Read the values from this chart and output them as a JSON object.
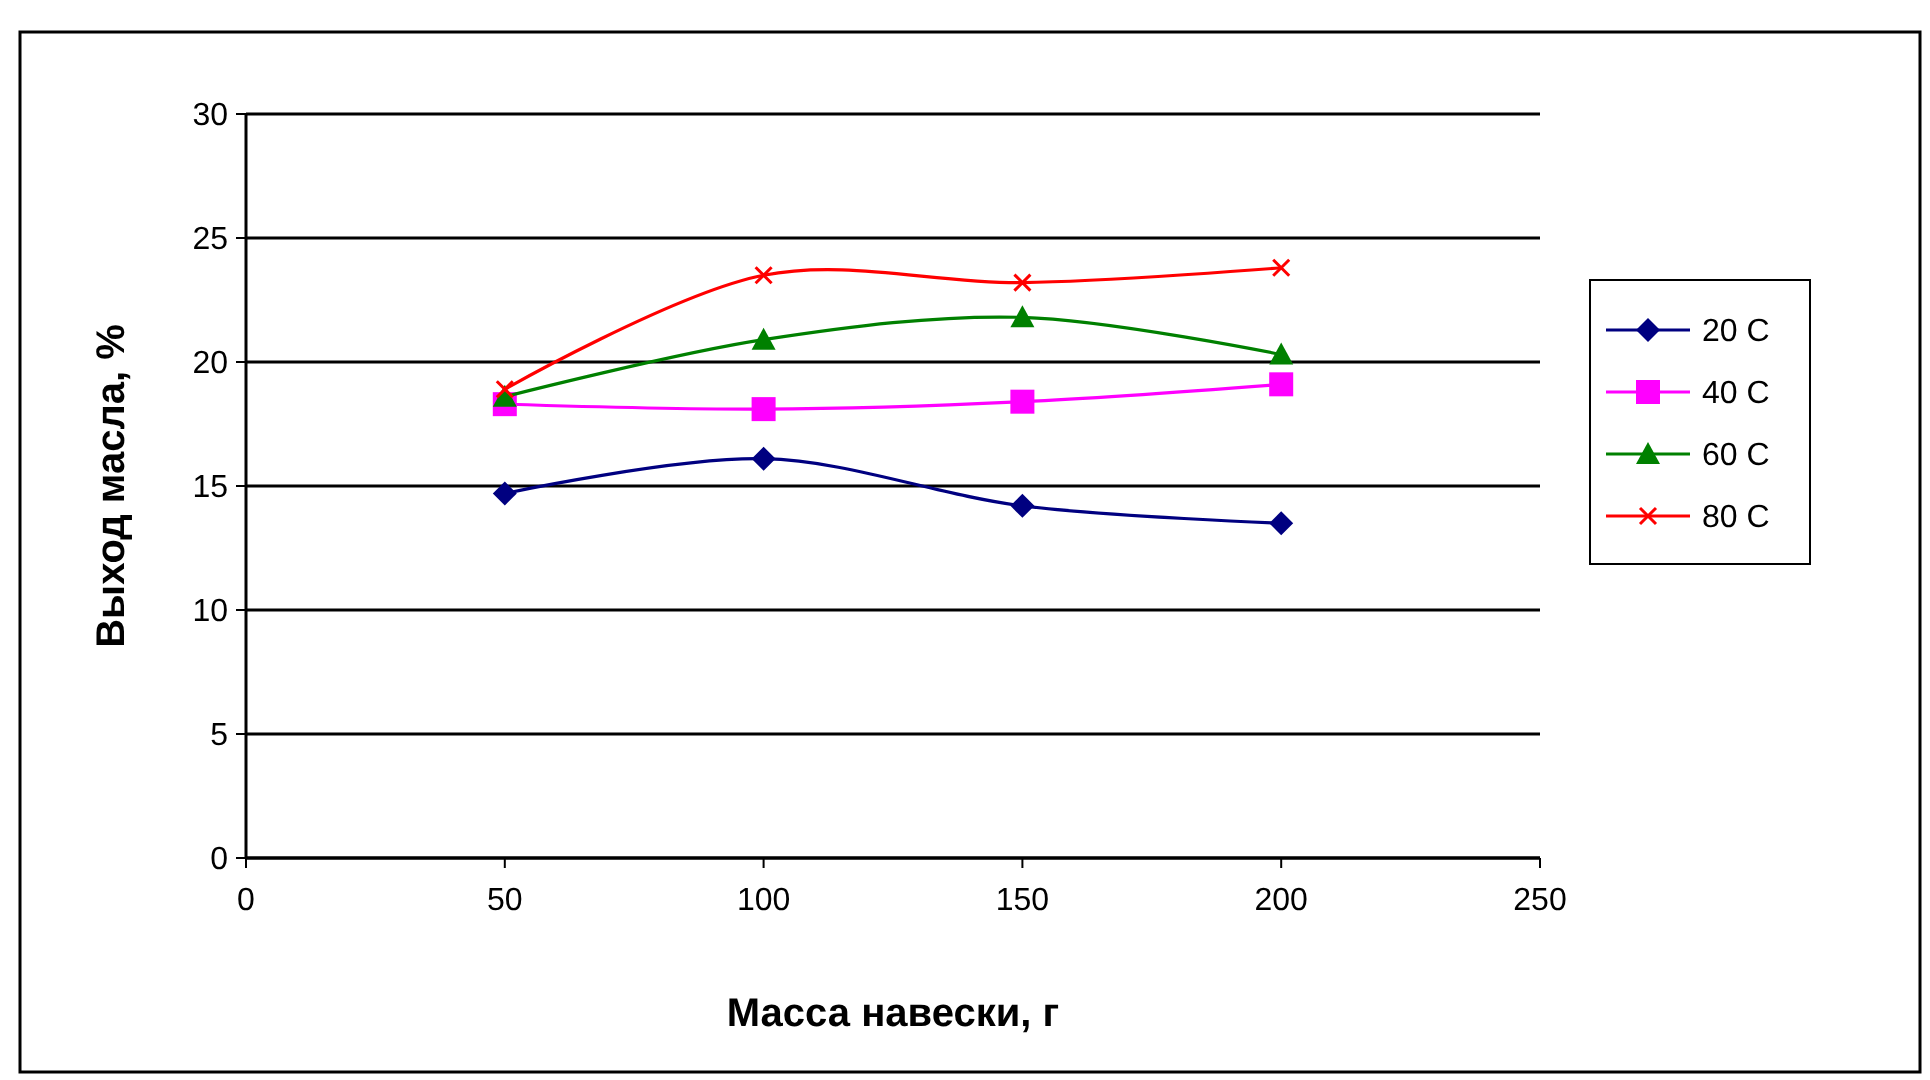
{
  "chart_data": {
    "type": "line",
    "xlabel": "Масса навески, г",
    "ylabel": "Выход масла, %",
    "x": [
      50,
      100,
      150,
      200
    ],
    "xlim": [
      0,
      250
    ],
    "xticks": [
      0,
      50,
      100,
      150,
      200,
      250
    ],
    "ylim": [
      0,
      30
    ],
    "yticks": [
      0,
      5,
      10,
      15,
      20,
      25,
      30
    ],
    "grid": "y",
    "legend": "right",
    "series": [
      {
        "name": "20 C",
        "color": "#000080",
        "marker": "diamond",
        "values": [
          14.7,
          16.1,
          14.2,
          13.5
        ]
      },
      {
        "name": "40 C",
        "color": "#ff00ff",
        "marker": "square",
        "values": [
          18.3,
          18.1,
          18.4,
          19.1
        ]
      },
      {
        "name": "60 C",
        "color": "#008000",
        "marker": "triangle",
        "values": [
          18.6,
          20.9,
          21.8,
          20.3
        ]
      },
      {
        "name": "80 C",
        "color": "#ff0000",
        "marker": "cross",
        "values": [
          18.9,
          23.5,
          23.2,
          23.8
        ]
      }
    ]
  }
}
